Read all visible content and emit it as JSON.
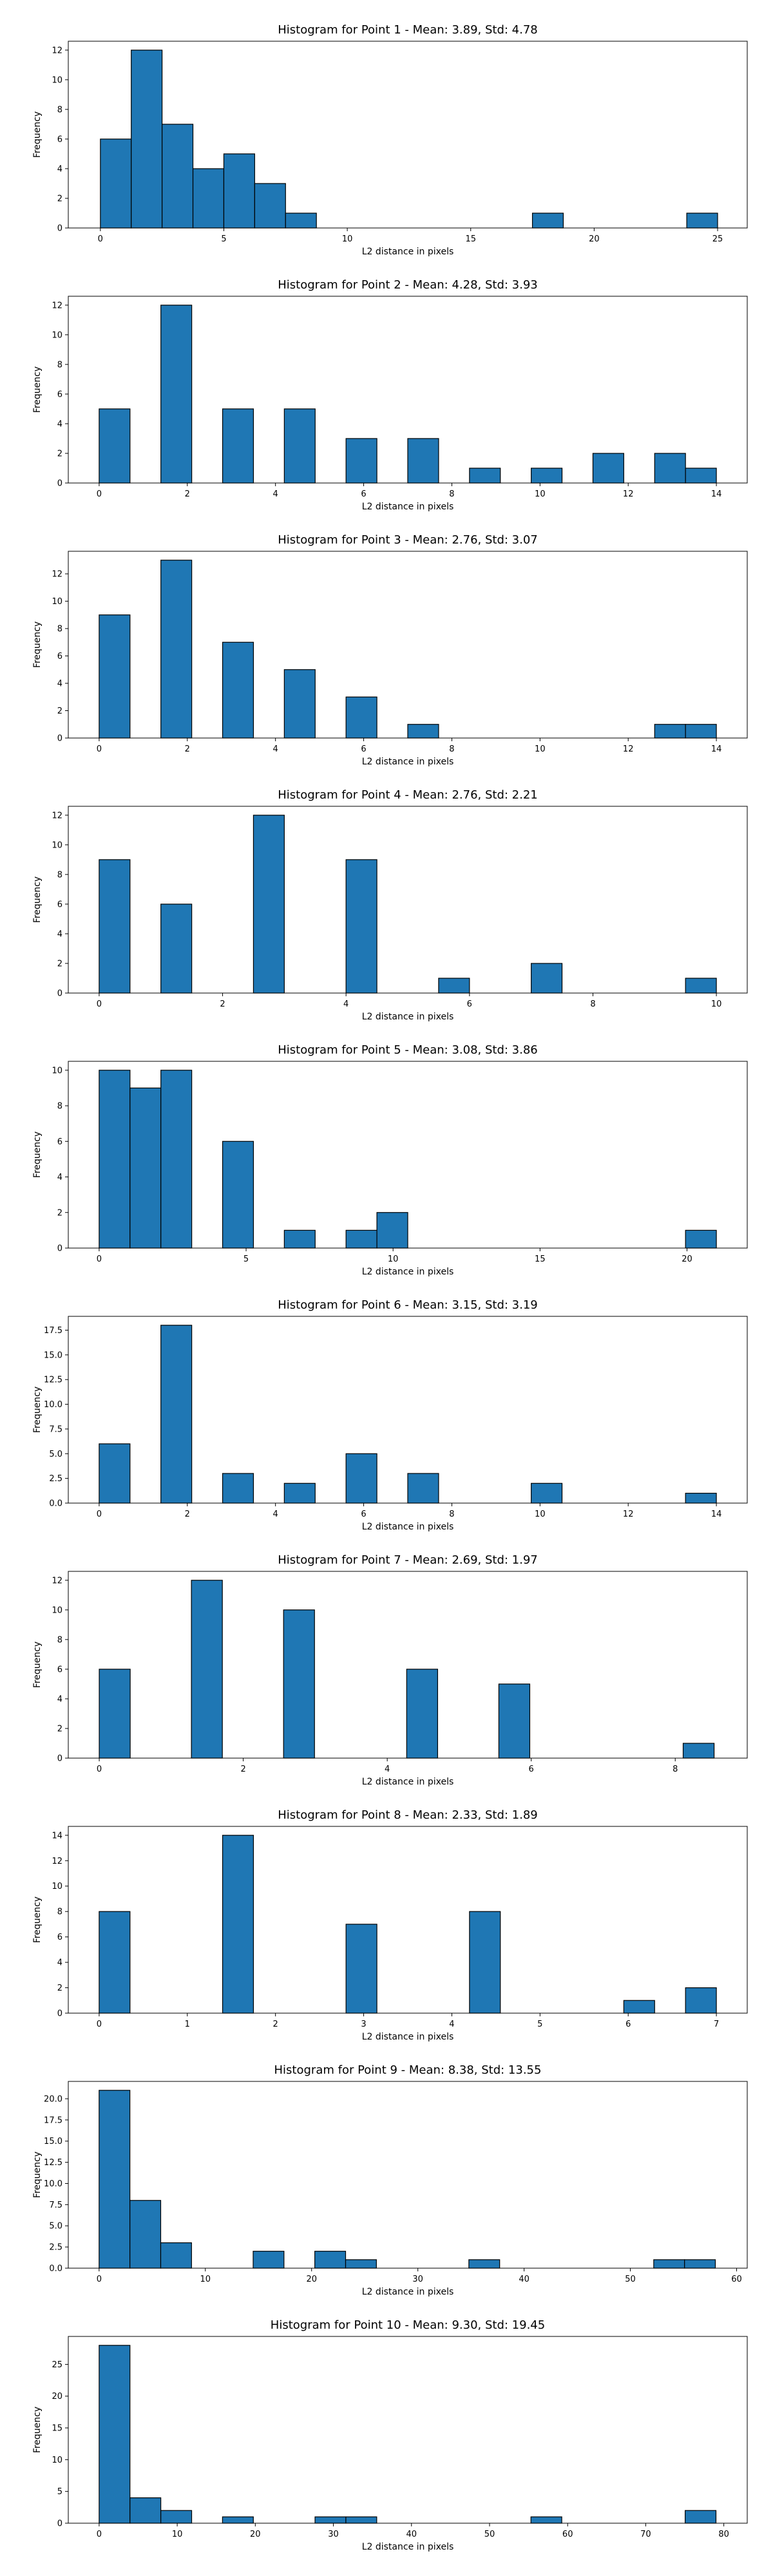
{
  "colors": {
    "bar_fill": "#1f77b4",
    "bar_edge": "#000000",
    "background": "#ffffff"
  },
  "chart_data": [
    {
      "type": "bar",
      "title": "Histogram for Point 1 - Mean: 3.89, Std: 4.78",
      "xlabel": "L2 distance in pixels",
      "ylabel": "Frequency",
      "xlim": [
        -1.3,
        26.2
      ],
      "ylim": [
        0,
        12.6
      ],
      "xticks": [
        0,
        5,
        10,
        15,
        20,
        25
      ],
      "xtick_labels": [
        "0",
        "5",
        "10",
        "15",
        "20",
        "25"
      ],
      "yticks": [
        0,
        2,
        4,
        6,
        8,
        10,
        12
      ],
      "ytick_labels": [
        "0",
        "2",
        "4",
        "6",
        "8",
        "10",
        "12"
      ],
      "bins": [
        {
          "x0": 0.0,
          "x1": 1.25,
          "count": 6
        },
        {
          "x0": 1.25,
          "x1": 2.5,
          "count": 12
        },
        {
          "x0": 2.5,
          "x1": 3.75,
          "count": 7
        },
        {
          "x0": 3.75,
          "x1": 5.0,
          "count": 4
        },
        {
          "x0": 5.0,
          "x1": 6.25,
          "count": 5
        },
        {
          "x0": 6.25,
          "x1": 7.5,
          "count": 3
        },
        {
          "x0": 7.5,
          "x1": 8.75,
          "count": 1
        },
        {
          "x0": 17.5,
          "x1": 18.75,
          "count": 1
        },
        {
          "x0": 23.75,
          "x1": 25.0,
          "count": 1
        }
      ],
      "grid": false
    },
    {
      "type": "bar",
      "title": "Histogram for Point 2 - Mean: 4.28, Std: 3.93",
      "xlabel": "L2 distance in pixels",
      "ylabel": "Frequency",
      "xlim": [
        -0.7,
        14.7
      ],
      "ylim": [
        0,
        12.6
      ],
      "xticks": [
        0,
        2,
        4,
        6,
        8,
        10,
        12,
        14
      ],
      "xtick_labels": [
        "0",
        "2",
        "4",
        "6",
        "8",
        "10",
        "12",
        "14"
      ],
      "yticks": [
        0,
        2,
        4,
        6,
        8,
        10,
        12
      ],
      "ytick_labels": [
        "0",
        "2",
        "4",
        "6",
        "8",
        "10",
        "12"
      ],
      "bins": [
        {
          "x0": 0.0,
          "x1": 0.7,
          "count": 5
        },
        {
          "x0": 1.4,
          "x1": 2.1,
          "count": 12
        },
        {
          "x0": 2.8,
          "x1": 3.5,
          "count": 5
        },
        {
          "x0": 4.2,
          "x1": 4.9,
          "count": 5
        },
        {
          "x0": 5.6,
          "x1": 6.3,
          "count": 3
        },
        {
          "x0": 7.0,
          "x1": 7.7,
          "count": 3
        },
        {
          "x0": 8.4,
          "x1": 9.1,
          "count": 1
        },
        {
          "x0": 9.8,
          "x1": 10.5,
          "count": 1
        },
        {
          "x0": 11.2,
          "x1": 11.9,
          "count": 2
        },
        {
          "x0": 12.6,
          "x1": 13.3,
          "count": 2
        },
        {
          "x0": 13.3,
          "x1": 14.0,
          "count": 1
        }
      ],
      "grid": false
    },
    {
      "type": "bar",
      "title": "Histogram for Point 3 - Mean: 2.76, Std: 3.07",
      "xlabel": "L2 distance in pixels",
      "ylabel": "Frequency",
      "xlim": [
        -0.7,
        14.7
      ],
      "ylim": [
        0,
        13.65
      ],
      "xticks": [
        0,
        2,
        4,
        6,
        8,
        10,
        12,
        14
      ],
      "xtick_labels": [
        "0",
        "2",
        "4",
        "6",
        "8",
        "10",
        "12",
        "14"
      ],
      "yticks": [
        0,
        2,
        4,
        6,
        8,
        10,
        12
      ],
      "ytick_labels": [
        "0",
        "2",
        "4",
        "6",
        "8",
        "10",
        "12"
      ],
      "bins": [
        {
          "x0": 0.0,
          "x1": 0.7,
          "count": 9
        },
        {
          "x0": 1.4,
          "x1": 2.1,
          "count": 13
        },
        {
          "x0": 2.8,
          "x1": 3.5,
          "count": 7
        },
        {
          "x0": 4.2,
          "x1": 4.9,
          "count": 5
        },
        {
          "x0": 5.6,
          "x1": 6.3,
          "count": 3
        },
        {
          "x0": 7.0,
          "x1": 7.7,
          "count": 1
        },
        {
          "x0": 12.6,
          "x1": 13.3,
          "count": 1
        },
        {
          "x0": 13.3,
          "x1": 14.0,
          "count": 1
        }
      ],
      "grid": false
    },
    {
      "type": "bar",
      "title": "Histogram for Point 4 - Mean: 2.76, Std: 2.21",
      "xlabel": "L2 distance in pixels",
      "ylabel": "Frequency",
      "xlim": [
        -0.5,
        10.5
      ],
      "ylim": [
        0,
        12.6
      ],
      "xticks": [
        0,
        2,
        4,
        6,
        8,
        10
      ],
      "xtick_labels": [
        "0",
        "2",
        "4",
        "6",
        "8",
        "10"
      ],
      "yticks": [
        0,
        2,
        4,
        6,
        8,
        10,
        12
      ],
      "ytick_labels": [
        "0",
        "2",
        "4",
        "6",
        "8",
        "10",
        "12"
      ],
      "bins": [
        {
          "x0": 0.0,
          "x1": 0.5,
          "count": 9
        },
        {
          "x0": 1.0,
          "x1": 1.5,
          "count": 6
        },
        {
          "x0": 2.5,
          "x1": 3.0,
          "count": 12
        },
        {
          "x0": 4.0,
          "x1": 4.5,
          "count": 9
        },
        {
          "x0": 5.5,
          "x1": 6.0,
          "count": 1
        },
        {
          "x0": 7.0,
          "x1": 7.5,
          "count": 2
        },
        {
          "x0": 9.5,
          "x1": 10.0,
          "count": 1
        }
      ],
      "grid": false
    },
    {
      "type": "bar",
      "title": "Histogram for Point 5 - Mean: 3.08, Std: 3.86",
      "xlabel": "L2 distance in pixels",
      "ylabel": "Frequency",
      "xlim": [
        -1.05,
        22.05
      ],
      "ylim": [
        0,
        10.5
      ],
      "xticks": [
        0,
        5,
        10,
        15,
        20
      ],
      "xtick_labels": [
        "0",
        "5",
        "10",
        "15",
        "20"
      ],
      "yticks": [
        0,
        2,
        4,
        6,
        8,
        10
      ],
      "ytick_labels": [
        "0",
        "2",
        "4",
        "6",
        "8",
        "10"
      ],
      "bins": [
        {
          "x0": 0.0,
          "x1": 1.05,
          "count": 10
        },
        {
          "x0": 1.05,
          "x1": 2.1,
          "count": 9
        },
        {
          "x0": 2.1,
          "x1": 3.15,
          "count": 10
        },
        {
          "x0": 4.2,
          "x1": 5.25,
          "count": 6
        },
        {
          "x0": 6.3,
          "x1": 7.35,
          "count": 1
        },
        {
          "x0": 8.4,
          "x1": 9.45,
          "count": 1
        },
        {
          "x0": 9.45,
          "x1": 10.5,
          "count": 2
        },
        {
          "x0": 19.95,
          "x1": 21.0,
          "count": 1
        }
      ],
      "grid": false
    },
    {
      "type": "bar",
      "title": "Histogram for Point 6 - Mean: 3.15, Std: 3.19",
      "xlabel": "L2 distance in pixels",
      "ylabel": "Frequency",
      "xlim": [
        -0.7,
        14.7
      ],
      "ylim": [
        0,
        18.9
      ],
      "xticks": [
        0,
        2,
        4,
        6,
        8,
        10,
        12,
        14
      ],
      "xtick_labels": [
        "0",
        "2",
        "4",
        "6",
        "8",
        "10",
        "12",
        "14"
      ],
      "yticks": [
        0,
        2.5,
        5,
        7.5,
        10,
        12.5,
        15,
        17.5
      ],
      "ytick_labels": [
        "0.0",
        "2.5",
        "5.0",
        "7.5",
        "10.0",
        "12.5",
        "15.0",
        "17.5"
      ],
      "bins": [
        {
          "x0": 0.0,
          "x1": 0.7,
          "count": 6
        },
        {
          "x0": 1.4,
          "x1": 2.1,
          "count": 18
        },
        {
          "x0": 2.8,
          "x1": 3.5,
          "count": 3
        },
        {
          "x0": 4.2,
          "x1": 4.9,
          "count": 2
        },
        {
          "x0": 5.6,
          "x1": 6.3,
          "count": 5
        },
        {
          "x0": 7.0,
          "x1": 7.7,
          "count": 3
        },
        {
          "x0": 9.8,
          "x1": 10.5,
          "count": 2
        },
        {
          "x0": 13.3,
          "x1": 14.0,
          "count": 1
        }
      ],
      "grid": false
    },
    {
      "type": "bar",
      "title": "Histogram for Point 7 - Mean: 2.69, Std: 1.97",
      "xlabel": "L2 distance in pixels",
      "ylabel": "Frequency",
      "xlim": [
        -0.43,
        9.0
      ],
      "ylim": [
        0,
        12.6
      ],
      "xticks": [
        0,
        2,
        4,
        6,
        8
      ],
      "xtick_labels": [
        "0",
        "2",
        "4",
        "6",
        "8"
      ],
      "yticks": [
        0,
        2,
        4,
        6,
        8,
        10,
        12
      ],
      "ytick_labels": [
        "0",
        "2",
        "4",
        "6",
        "8",
        "10",
        "12"
      ],
      "bins": [
        {
          "x0": 0.0,
          "x1": 0.43,
          "count": 6
        },
        {
          "x0": 1.28,
          "x1": 1.71,
          "count": 12
        },
        {
          "x0": 2.56,
          "x1": 2.99,
          "count": 10
        },
        {
          "x0": 4.27,
          "x1": 4.7,
          "count": 6
        },
        {
          "x0": 5.55,
          "x1": 5.98,
          "count": 5
        },
        {
          "x0": 8.11,
          "x1": 8.54,
          "count": 1
        }
      ],
      "grid": false
    },
    {
      "type": "bar",
      "title": "Histogram for Point 8 - Mean: 2.33, Std: 1.89",
      "xlabel": "L2 distance in pixels",
      "ylabel": "Frequency",
      "xlim": [
        -0.35,
        7.35
      ],
      "ylim": [
        0,
        14.7
      ],
      "xticks": [
        0,
        1,
        2,
        3,
        4,
        5,
        6,
        7
      ],
      "xtick_labels": [
        "0",
        "1",
        "2",
        "3",
        "4",
        "5",
        "6",
        "7"
      ],
      "yticks": [
        0,
        2,
        4,
        6,
        8,
        10,
        12,
        14
      ],
      "ytick_labels": [
        "0",
        "2",
        "4",
        "6",
        "8",
        "10",
        "12",
        "14"
      ],
      "bins": [
        {
          "x0": 0.0,
          "x1": 0.35,
          "count": 8
        },
        {
          "x0": 1.4,
          "x1": 1.75,
          "count": 14
        },
        {
          "x0": 2.8,
          "x1": 3.15,
          "count": 7
        },
        {
          "x0": 4.2,
          "x1": 4.55,
          "count": 8
        },
        {
          "x0": 5.95,
          "x1": 6.3,
          "count": 1
        },
        {
          "x0": 6.65,
          "x1": 7.0,
          "count": 2
        }
      ],
      "grid": false
    },
    {
      "type": "bar",
      "title": "Histogram for Point 9 - Mean: 8.38, Std: 13.55",
      "xlabel": "L2 distance in pixels",
      "ylabel": "Frequency",
      "xlim": [
        -2.9,
        61.0
      ],
      "ylim": [
        0,
        22.05
      ],
      "xticks": [
        0,
        10,
        20,
        30,
        40,
        50,
        60
      ],
      "xtick_labels": [
        "0",
        "10",
        "20",
        "30",
        "40",
        "50",
        "60"
      ],
      "yticks": [
        0,
        2.5,
        5,
        7.5,
        10,
        12.5,
        15,
        17.5,
        20
      ],
      "ytick_labels": [
        "0.0",
        "2.5",
        "5.0",
        "7.5",
        "10.0",
        "12.5",
        "15.0",
        "17.5",
        "20.0"
      ],
      "bins": [
        {
          "x0": 0.0,
          "x1": 2.9,
          "count": 21
        },
        {
          "x0": 2.9,
          "x1": 5.8,
          "count": 8
        },
        {
          "x0": 5.8,
          "x1": 8.7,
          "count": 3
        },
        {
          "x0": 14.5,
          "x1": 17.4,
          "count": 2
        },
        {
          "x0": 20.3,
          "x1": 23.2,
          "count": 2
        },
        {
          "x0": 23.2,
          "x1": 26.1,
          "count": 1
        },
        {
          "x0": 34.8,
          "x1": 37.7,
          "count": 1
        },
        {
          "x0": 52.2,
          "x1": 55.1,
          "count": 1
        },
        {
          "x0": 55.1,
          "x1": 58.0,
          "count": 1
        }
      ],
      "grid": false
    },
    {
      "type": "bar",
      "title": "Histogram for Point 10 - Mean: 9.30, Std: 19.45",
      "xlabel": "L2 distance in pixels",
      "ylabel": "Frequency",
      "xlim": [
        -3.95,
        83.0
      ],
      "ylim": [
        0,
        29.4
      ],
      "xticks": [
        0,
        10,
        20,
        30,
        40,
        50,
        60,
        70,
        80
      ],
      "xtick_labels": [
        "0",
        "10",
        "20",
        "30",
        "40",
        "50",
        "60",
        "70",
        "80"
      ],
      "yticks": [
        0,
        5,
        10,
        15,
        20,
        25
      ],
      "ytick_labels": [
        "0",
        "5",
        "10",
        "15",
        "20",
        "25"
      ],
      "bins": [
        {
          "x0": 0.0,
          "x1": 3.95,
          "count": 28
        },
        {
          "x0": 3.95,
          "x1": 7.9,
          "count": 4
        },
        {
          "x0": 7.9,
          "x1": 11.85,
          "count": 2
        },
        {
          "x0": 15.8,
          "x1": 19.75,
          "count": 1
        },
        {
          "x0": 27.65,
          "x1": 31.6,
          "count": 1
        },
        {
          "x0": 31.6,
          "x1": 35.55,
          "count": 1
        },
        {
          "x0": 55.3,
          "x1": 59.25,
          "count": 1
        },
        {
          "x0": 75.05,
          "x1": 79.0,
          "count": 2
        }
      ],
      "grid": false
    }
  ]
}
